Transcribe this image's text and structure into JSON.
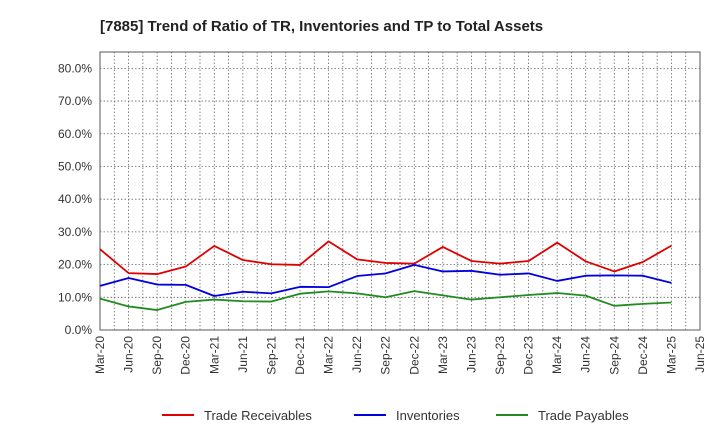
{
  "chart_data": {
    "type": "line",
    "title": "[7885]  Trend of Ratio of TR, Inventories and TP to Total Assets",
    "xlabel": "",
    "ylabel": "",
    "ylim": [
      0,
      85
    ],
    "y_ticks": [
      0,
      10,
      20,
      30,
      40,
      50,
      60,
      70,
      80
    ],
    "y_tick_labels": [
      "0.0%",
      "10.0%",
      "20.0%",
      "30.0%",
      "40.0%",
      "50.0%",
      "60.0%",
      "70.0%",
      "80.0%"
    ],
    "x_tick_labels": [
      "Mar-20",
      "Jun-20",
      "Sep-20",
      "Dec-20",
      "Mar-21",
      "Jun-21",
      "Sep-21",
      "Dec-21",
      "Mar-22",
      "Jun-22",
      "Sep-22",
      "Dec-22",
      "Mar-23",
      "Jun-23",
      "Sep-23",
      "Dec-23",
      "Mar-24",
      "Jun-24",
      "Sep-24",
      "Dec-24",
      "Mar-25",
      "Jun-25"
    ],
    "grid": true,
    "legend_position": "bottom",
    "series": [
      {
        "name": "Trade Receivables",
        "color": "#e00000",
        "values": [
          24.7,
          17.4,
          17.1,
          19.4,
          25.7,
          21.4,
          20.1,
          19.9,
          27.1,
          21.6,
          20.5,
          20.3,
          25.4,
          21.1,
          20.3,
          21.1,
          26.7,
          21.0,
          17.9,
          20.8,
          25.8
        ]
      },
      {
        "name": "Inventories",
        "color": "#0000dd",
        "values": [
          13.5,
          15.9,
          13.9,
          13.8,
          10.4,
          11.7,
          11.2,
          13.2,
          13.1,
          16.5,
          17.3,
          19.9,
          17.9,
          18.1,
          16.9,
          17.3,
          15.0,
          16.6,
          16.7,
          16.6,
          14.4
        ]
      },
      {
        "name": "Trade Payables",
        "color": "#228b22",
        "values": [
          9.6,
          7.2,
          6.1,
          8.6,
          9.3,
          8.8,
          8.7,
          11.1,
          11.8,
          11.2,
          10.0,
          11.9,
          10.6,
          9.3,
          10.0,
          10.7,
          11.3,
          10.5,
          7.4,
          8.0,
          8.4
        ]
      }
    ]
  }
}
